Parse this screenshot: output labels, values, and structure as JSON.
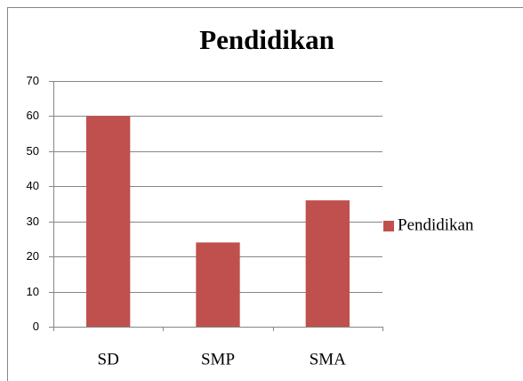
{
  "chart_data": {
    "type": "bar",
    "title": "Pendidikan",
    "categories": [
      "SD",
      "SMP",
      "SMA"
    ],
    "series": [
      {
        "name": "Pendidikan",
        "color": "#c0504d",
        "values": [
          60,
          24,
          36
        ]
      }
    ],
    "ylim": [
      0,
      70
    ],
    "yticks": [
      0,
      10,
      20,
      30,
      40,
      50,
      60,
      70
    ],
    "grid": true,
    "legend": "right"
  }
}
